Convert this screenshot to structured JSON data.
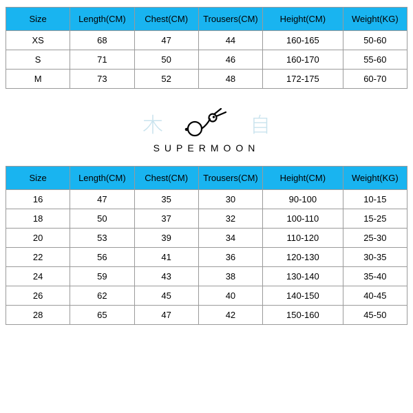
{
  "colors": {
    "header_bg": "#19b4f0",
    "border": "#9a9a9a",
    "cjk": "#a6d1e3",
    "text": "#000000",
    "background": "#ffffff"
  },
  "branding": {
    "left_char": "木",
    "right_char": "自",
    "name": "SUPERMOON",
    "icon": "rabbit-icon"
  },
  "sizing_adult": {
    "columns": [
      "Size",
      "Length(CM)",
      "Chest(CM)",
      "Trousers(CM)",
      "Height(CM)",
      "Weight(KG)"
    ],
    "column_widths_pct": [
      16,
      16,
      16,
      16,
      20,
      16
    ],
    "rows": [
      [
        "XS",
        "68",
        "47",
        "44",
        "160-165",
        "50-60"
      ],
      [
        "S",
        "71",
        "50",
        "46",
        "160-170",
        "55-60"
      ],
      [
        "M",
        "73",
        "52",
        "48",
        "172-175",
        "60-70"
      ]
    ]
  },
  "sizing_kids": {
    "columns": [
      "Size",
      "Length(CM)",
      "Chest(CM)",
      "Trousers(CM)",
      "Height(CM)",
      "Weight(KG)"
    ],
    "column_widths_pct": [
      16,
      16,
      16,
      16,
      20,
      16
    ],
    "rows": [
      [
        "16",
        "47",
        "35",
        "30",
        "90-100",
        "10-15"
      ],
      [
        "18",
        "50",
        "37",
        "32",
        "100-110",
        "15-25"
      ],
      [
        "20",
        "53",
        "39",
        "34",
        "110-120",
        "25-30"
      ],
      [
        "22",
        "56",
        "41",
        "36",
        "120-130",
        "30-35"
      ],
      [
        "24",
        "59",
        "43",
        "38",
        "130-140",
        "35-40"
      ],
      [
        "26",
        "62",
        "45",
        "40",
        "140-150",
        "40-45"
      ],
      [
        "28",
        "65",
        "47",
        "42",
        "150-160",
        "45-50"
      ]
    ]
  }
}
